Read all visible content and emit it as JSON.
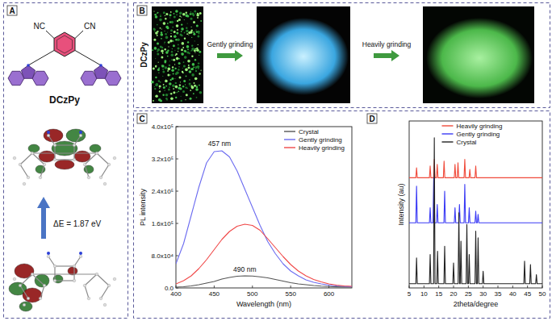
{
  "panels": {
    "a": {
      "label": "A",
      "compound": "DCzPy",
      "atoms": [
        "NC",
        "CN"
      ],
      "energy_gap": "ΔE = 1.87 eV"
    },
    "b": {
      "label": "B",
      "compound": "DCzPy",
      "steps": [
        "Gently grinding",
        "Heavily grinding"
      ]
    },
    "c": {
      "label": "C"
    },
    "d": {
      "label": "D"
    }
  },
  "chart_data": [
    {
      "type": "line",
      "x_label": "Wavelength (nm)",
      "y_label": "PL intensity",
      "x": [
        400,
        410,
        420,
        430,
        440,
        450,
        460,
        470,
        480,
        490,
        500,
        510,
        520,
        530,
        540,
        550,
        560,
        570,
        580,
        590,
        600,
        610,
        620,
        630
      ],
      "series": [
        {
          "name": "Crystal",
          "color": "#555555",
          "values": [
            2000,
            3000,
            5000,
            8000,
            12000,
            16000,
            22000,
            26000,
            29000,
            30000,
            29500,
            27500,
            25000,
            21000,
            17000,
            13000,
            10000,
            8000,
            6000,
            4500,
            3500,
            2800,
            2300,
            2000
          ]
        },
        {
          "name": "Gently grinding",
          "color": "#6b6bf0",
          "values": [
            60000,
            110000,
            180000,
            250000,
            310000,
            338000,
            340000,
            325000,
            290000,
            245000,
            200000,
            155000,
            115000,
            85000,
            60000,
            42000,
            30000,
            20000,
            14000,
            10000,
            7000,
            5000,
            4000,
            3000
          ]
        },
        {
          "name": "Heavily grinding",
          "color": "#f04848",
          "values": [
            10000,
            18000,
            30000,
            48000,
            70000,
            95000,
            120000,
            140000,
            153000,
            158000,
            155000,
            143000,
            122000,
            100000,
            78000,
            58000,
            42000,
            30000,
            21000,
            15000,
            10000,
            7000,
            5000,
            4000
          ]
        }
      ],
      "xlim": [
        400,
        630
      ],
      "xticks": [
        400,
        450,
        500,
        550,
        600
      ],
      "ylim": [
        0,
        400000
      ],
      "yticks": [
        {
          "value": 0,
          "label": "0.0"
        },
        {
          "value": 80000,
          "label": "8.0x10⁴"
        },
        {
          "value": 160000,
          "label": "1.6x10⁵"
        },
        {
          "value": 240000,
          "label": "2.4x10⁵"
        },
        {
          "value": 320000,
          "label": "3.2x10⁵"
        },
        {
          "value": 400000,
          "label": "4.0x10⁵"
        }
      ],
      "annotations": [
        {
          "text": "457 nm",
          "x": 457,
          "y": 343000
        },
        {
          "text": "490 nm",
          "x": 490,
          "y": 30000
        }
      ],
      "legend": "upper right"
    },
    {
      "type": "line",
      "x_label": "2theta/degree",
      "y_label": "Intensity (au)",
      "series": [
        {
          "name": "Heavily grinding",
          "color": "#f04a3a",
          "x": [
            5,
            7.25,
            7.5,
            7.75,
            11.85,
            12.1,
            12.35,
            13.25,
            13.5,
            13.75,
            14.25,
            14.5,
            14.75,
            16.55,
            16.8,
            17.05,
            20.25,
            20.5,
            20.75,
            21.25,
            21.5,
            21.75,
            23.55,
            23.8,
            24.05,
            25.25,
            25.5,
            25.75,
            27.25,
            27.5,
            27.75,
            50
          ],
          "values": [
            66,
            66,
            72,
            66,
            66,
            73,
            66,
            66,
            77,
            66,
            66,
            74,
            66,
            66,
            76,
            66,
            66,
            74,
            66,
            66,
            75,
            66,
            66,
            77,
            66,
            66,
            71,
            66,
            66,
            73,
            66,
            66
          ]
        },
        {
          "name": "Gently grinding",
          "color": "#3a3af5",
          "x": [
            5,
            7.25,
            7.5,
            7.75,
            11.85,
            12.1,
            12.35,
            13.05,
            13.3,
            13.55,
            14.25,
            14.5,
            14.75,
            16.75,
            17,
            17.25,
            20.25,
            20.5,
            20.75,
            21.75,
            22,
            22.25,
            23.55,
            23.8,
            24.05,
            25.05,
            25.3,
            25.55,
            27.25,
            27.5,
            27.75,
            28.05,
            28.3,
            28.55,
            50
          ],
          "values": [
            39,
            39,
            61,
            39,
            39,
            48,
            39,
            39,
            66,
            39,
            39,
            50,
            39,
            39,
            58,
            39,
            39,
            48,
            39,
            39,
            50,
            39,
            39,
            62,
            39,
            39,
            48,
            39,
            39,
            46,
            39,
            39,
            44,
            39,
            39
          ]
        },
        {
          "name": "Crystal",
          "color": "#222222",
          "x": [
            5,
            7.25,
            7.5,
            7.75,
            11.85,
            12.1,
            12.35,
            13.25,
            13.5,
            13.75,
            14.35,
            14.6,
            14.85,
            16.75,
            17,
            17.25,
            19.75,
            20,
            20.25,
            21.55,
            21.8,
            22.05,
            22.25,
            22.5,
            22.75,
            24.25,
            24.5,
            24.75,
            25.05,
            25.3,
            25.55,
            27.25,
            27.5,
            27.75,
            28.05,
            28.3,
            28.55,
            29.75,
            30,
            30.25,
            43.75,
            44,
            44.25,
            45.75,
            46,
            46.25,
            47.75,
            48,
            48.25,
            50
          ],
          "values": [
            2.5,
            2.5,
            18,
            2.5,
            2.5,
            20,
            2.5,
            2.5,
            90,
            2.5,
            2.5,
            22,
            2.5,
            2.5,
            25,
            2.5,
            2.5,
            15,
            2.5,
            2.5,
            45,
            2.5,
            2.5,
            28,
            2.5,
            2.5,
            38,
            2.5,
            2.5,
            20,
            2.5,
            2.5,
            34,
            2.5,
            2.5,
            30,
            2.5,
            2.5,
            10,
            2.5,
            2.5,
            16,
            2.5,
            2.5,
            14,
            2.5,
            2.5,
            8,
            2.5,
            2.5
          ]
        }
      ],
      "xlim": [
        5,
        50
      ],
      "xticks": [
        5,
        10,
        15,
        20,
        25,
        30,
        35,
        40,
        45,
        50
      ],
      "ylim": [
        0,
        100
      ],
      "tick_labels": "x",
      "legend": "upper center"
    }
  ]
}
